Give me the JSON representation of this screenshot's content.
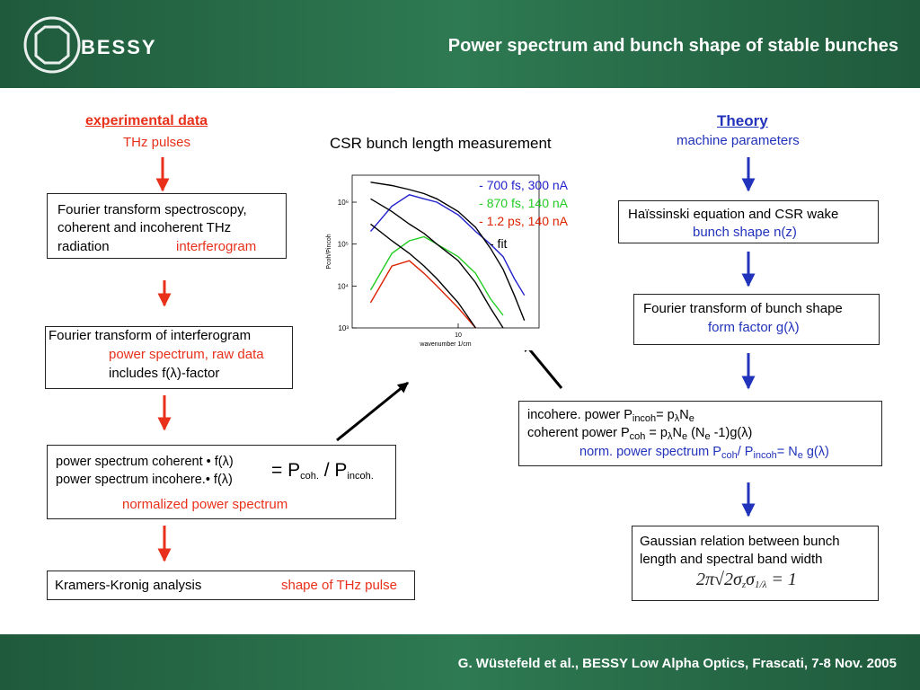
{
  "header": {
    "logo": "BESSY",
    "title": "Power spectrum and bunch shape of stable bunches"
  },
  "footer": "G. Wüstefeld et al., BESSY Low Alpha Optics, Frascati, 7-8 Nov. 2005",
  "experimental": {
    "heading": "experimental data",
    "subheading": "THz pulses",
    "box1": {
      "lines": [
        "Fourier transform spectroscopy,",
        "coherent and incoherent THz",
        "radiation"
      ],
      "result": "interferogram"
    },
    "box2": {
      "title": "Fourier transform of interferogram",
      "result": "power spectrum, raw data",
      "note": "includes f(λ)-factor"
    },
    "box3": {
      "numerator": "power spectrum coherent • f(λ)",
      "denominator": "power spectrum incohere.• f(λ)",
      "equals": [
        "=  P",
        "coh.",
        " / P",
        "incoh."
      ],
      "result": "normalized power spectrum"
    },
    "box4": {
      "title": "Kramers-Kronig analysis",
      "result": "shape of THz pulse"
    }
  },
  "theory": {
    "heading": "Theory",
    "subheading": "machine parameters",
    "box1": {
      "title": "Haïssinski equation and CSR wake",
      "result": "bunch shape n(z)"
    },
    "box2": {
      "title": "Fourier transform of bunch shape",
      "result": "form factor g(λ)"
    },
    "box3": {
      "lines": [
        [
          "incohere. power P",
          "incoh",
          "= p",
          "λ",
          "N",
          "e"
        ],
        [
          "coherent  power P",
          "coh",
          " = p",
          "λ",
          "N",
          "e",
          " (N",
          "e",
          " -1)g(λ)"
        ]
      ],
      "result": [
        "norm. power spectrum P",
        "coh",
        "/ P",
        "incoh",
        "= N",
        "e",
        " g(λ)"
      ]
    },
    "box4": {
      "lines": [
        "Gaussian relation between bunch",
        "length and spectral band width"
      ],
      "formula": [
        "2π√2σ",
        "z",
        "σ",
        "1/λ",
        " = 1"
      ]
    }
  },
  "chart_data": {
    "type": "line",
    "title": "CSR bunch length measurement",
    "x": [
      4,
      5,
      6,
      7,
      8,
      10,
      12,
      14,
      16,
      18,
      20
    ],
    "series": [
      {
        "name": "- 700 fs, 300 nA",
        "color": "#2222cc",
        "values": [
          200000,
          800000,
          1500000,
          1200000,
          1000000,
          500000,
          200000,
          100000,
          50000,
          15000,
          6000
        ]
      },
      {
        "name": "- 870 fs, 140 nA",
        "color": "#22cc22",
        "values": [
          8000,
          60000,
          120000,
          150000,
          100000,
          50000,
          20000,
          5000,
          2000,
          null,
          null
        ]
      },
      {
        "name": "- 1.2 ps, 140 nA",
        "color": "#dd2200",
        "values": [
          4000,
          30000,
          40000,
          20000,
          10000,
          3000,
          1000,
          null,
          null,
          null,
          null
        ]
      },
      {
        "name": "-  fit",
        "color": "#000000",
        "values": [
          3000000,
          2500000,
          2000000,
          1600000,
          1200000,
          600000,
          250000,
          80000,
          25000,
          6000,
          1500
        ]
      },
      {
        "color": "#000000",
        "values": [
          1200000,
          600000,
          300000,
          180000,
          100000,
          40000,
          12000,
          3000,
          1000,
          null,
          null
        ]
      },
      {
        "color": "#000000",
        "values": [
          300000,
          120000,
          60000,
          30000,
          15000,
          4000,
          1000,
          null,
          null,
          null,
          null
        ]
      }
    ],
    "xlim": [
      3.3,
      23.3
    ],
    "ylim": [
      1000,
      4400000
    ],
    "xlog": true,
    "ylog": true,
    "xticks": [
      10
    ],
    "yticks": [
      {
        "value": 1000,
        "label": "10³"
      },
      {
        "value": 10000,
        "label": "10⁴"
      },
      {
        "value": 100000,
        "label": "10⁵"
      },
      {
        "value": 1000000,
        "label": "10⁶"
      }
    ],
    "x_label": "wavenumber 1/cm",
    "y_label": "Pcoh/Pincoh"
  }
}
